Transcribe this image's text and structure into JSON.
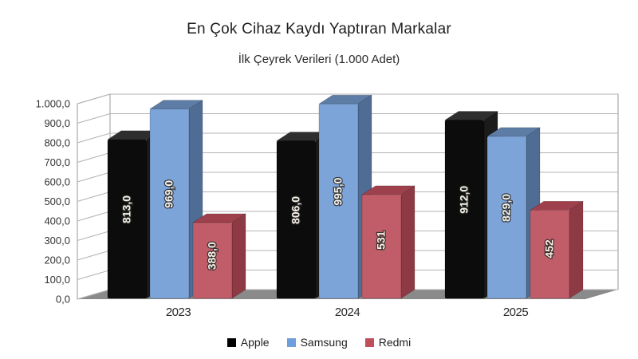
{
  "title": "En Çok Cihaz Kaydı Yaptıran Markalar",
  "subtitle": "İlk Çeyrek Verileri (1.000 Adet)",
  "chart_data": {
    "type": "bar",
    "projection": "3d",
    "title": "En Çok Cihaz Kaydı Yaptıran Markalar",
    "subtitle": "İlk Çeyrek Verileri (1.000 Adet)",
    "categories": [
      "2023",
      "2024",
      "2025"
    ],
    "series": [
      {
        "name": "Apple",
        "values": [
          813,
          806,
          912
        ],
        "labels": [
          "813,0",
          "806,0",
          "912,0"
        ],
        "color_front": "#0c0c0c",
        "color_top": "#2e2e2e",
        "color_side": "#1b1b1b"
      },
      {
        "name": "Samsung",
        "values": [
          969,
          995,
          829
        ],
        "labels": [
          "969,0",
          "995,0",
          "829,0"
        ],
        "color_front": "#7da4d9",
        "color_top": "#5d7da6",
        "color_side": "#4f6c94"
      },
      {
        "name": "Redmi",
        "values": [
          388,
          531,
          452
        ],
        "labels": [
          "388,0",
          "531",
          "452"
        ],
        "color_front": "#c05d69",
        "color_top": "#9e414d",
        "color_side": "#8e3a45"
      }
    ],
    "ylim": [
      0,
      1000
    ],
    "ytick_labels": [
      "1.000,0",
      "900,0",
      "800,0",
      "700,0",
      "600,0",
      "500,0",
      "400,0",
      "300,0",
      "200,0",
      "100,0",
      "0,0"
    ],
    "grid": true,
    "legend_position": "bottom",
    "data_label_color": "#f7f3e8",
    "grid_color": "#b3b3b3",
    "wall_border_color": "#9a9a9a",
    "floor_color": "#8a8a8a",
    "axis_text_color": "#333333"
  },
  "legend": {
    "items": [
      {
        "label": "Apple",
        "color": "#000000"
      },
      {
        "label": "Samsung",
        "color": "#6f9edd"
      },
      {
        "label": "Redmi",
        "color": "#bf4f5b"
      }
    ]
  }
}
